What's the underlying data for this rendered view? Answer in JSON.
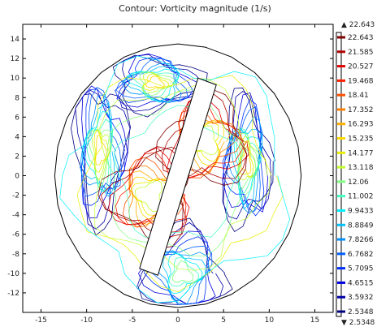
{
  "chart_data": {
    "type": "contour",
    "title": "Contour: Vorticity magnitude (1/s)",
    "xlim": [
      -17,
      17
    ],
    "ylim": [
      -14,
      15.5
    ],
    "x_ticks": [
      -15,
      -10,
      -5,
      0,
      5,
      10,
      15
    ],
    "y_ticks": [
      14,
      12,
      10,
      8,
      6,
      4,
      2,
      0,
      -2,
      -4,
      -6,
      -8,
      -10,
      -12
    ],
    "x_tick_labels": [
      "-15",
      "-10",
      "-5",
      "0",
      "5",
      "10",
      "15"
    ],
    "y_tick_labels": [
      "14",
      "12",
      "10",
      "8",
      "6",
      "4",
      "2",
      "0",
      "-2",
      "-4",
      "-6",
      "-8",
      "-10",
      "-12"
    ],
    "domain": {
      "shape": "circle",
      "center": [
        0,
        0
      ],
      "radius": 13.5
    },
    "obstacle": {
      "shape": "rotated-rectangle",
      "corners": [
        [
          2.2,
          10.0
        ],
        [
          4.2,
          9.3
        ],
        [
          -2.2,
          -10.2
        ],
        [
          -4.2,
          -9.5
        ]
      ]
    },
    "colorbar": {
      "max_label": "▲ 22.643",
      "min_label": "▼ 2.5348",
      "levels": [
        "22.643",
        "21.585",
        "20.527",
        "19.468",
        "18.41",
        "17.352",
        "16.293",
        "15.235",
        "14.177",
        "13.118",
        "12.06",
        "11.002",
        "9.9433",
        "8.8849",
        "7.8266",
        "6.7682",
        "5.7095",
        "4.6515",
        "3.5932",
        "2.5348"
      ],
      "colors": [
        "#800000",
        "#b00000",
        "#e00000",
        "#ff2000",
        "#ff5000",
        "#ff8000",
        "#ffb000",
        "#ffd800",
        "#e8f000",
        "#c0ff30",
        "#80ff80",
        "#40ffc0",
        "#00f0ff",
        "#00c0ff",
        "#0090ff",
        "#0060ff",
        "#0030ff",
        "#0000e0",
        "#0000a8",
        "#000080"
      ]
    },
    "vortex_regions": [
      {
        "center": [
          -8.5,
          2.5
        ],
        "level_range": [
          2.5348,
          15.235
        ]
      },
      {
        "center": [
          -2.5,
          9.5
        ],
        "level_range": [
          2.5348,
          15.235
        ]
      },
      {
        "center": [
          7.5,
          1.5
        ],
        "level_range": [
          2.5348,
          15.235
        ]
      },
      {
        "center": [
          0.5,
          -10.0
        ],
        "level_range": [
          2.5348,
          12.06
        ]
      },
      {
        "center": [
          3.0,
          3.5
        ],
        "level_range": [
          13.118,
          22.643
        ]
      },
      {
        "center": [
          -3.0,
          -2.0
        ],
        "level_range": [
          13.118,
          22.643
        ]
      }
    ]
  }
}
